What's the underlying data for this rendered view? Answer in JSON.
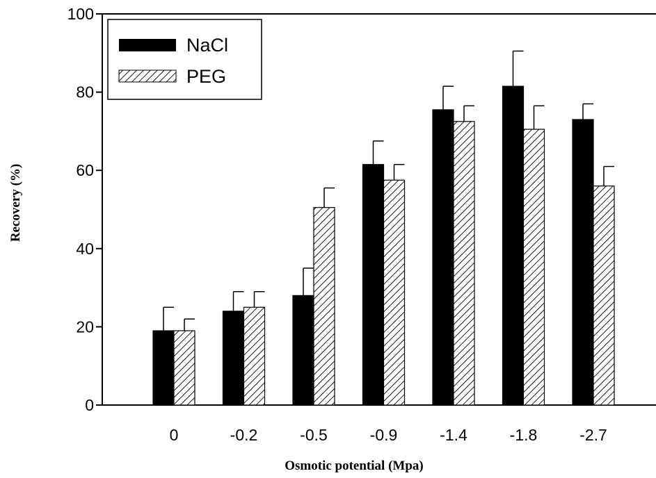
{
  "chart_data": {
    "type": "bar",
    "title": "",
    "xlabel": "Osmotic potential (Mpa)",
    "ylabel": "Recovery (%)",
    "ylim": [
      0,
      100
    ],
    "yticks": [
      0,
      20,
      40,
      60,
      80,
      100
    ],
    "categories": [
      "0",
      "-0.2",
      "-0.5",
      "-0.9",
      "-1.4",
      "-1.8",
      "-2.7"
    ],
    "series": [
      {
        "name": "NaCl",
        "values": [
          19,
          24,
          28,
          61.5,
          75.5,
          81.5,
          73
        ],
        "errors": [
          6,
          5,
          7,
          6,
          6,
          9,
          4
        ],
        "fill": "#000000",
        "pattern": "solid"
      },
      {
        "name": "PEG",
        "values": [
          19,
          25,
          50.5,
          57.5,
          72.5,
          70.5,
          56
        ],
        "errors": [
          3,
          4,
          5,
          4,
          4,
          6,
          5
        ],
        "fill": "#ffffff",
        "pattern": "diagonal-hatch"
      }
    ],
    "legend": "top-left",
    "grid": false
  }
}
